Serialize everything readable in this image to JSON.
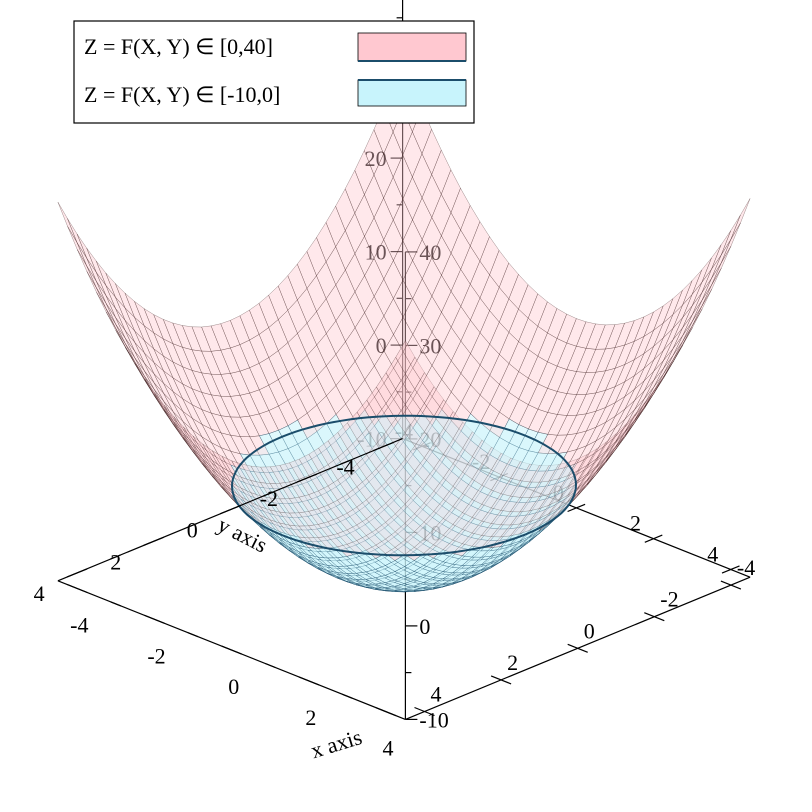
{
  "chart_data": {
    "type": "surface3d",
    "title": "",
    "xlabel": "x axis",
    "ylabel": "y axis",
    "zlabel": "",
    "xlim": [
      -4.5,
      4.5
    ],
    "ylim": [
      -4.5,
      4.5
    ],
    "zlim": [
      -10,
      40
    ],
    "x_ticks": [
      -4,
      -2,
      0,
      2,
      4
    ],
    "y_ticks": [
      -4,
      -2,
      0,
      2,
      4
    ],
    "z_ticks": [
      -10,
      0,
      10,
      20,
      30,
      40
    ],
    "x_tick_labels": [
      "-4",
      "-2",
      "0",
      "2",
      "4"
    ],
    "y_tick_labels": [
      "-4",
      "-2",
      "0",
      "2",
      "4"
    ],
    "z_tick_labels": [
      "-10",
      "0",
      "10",
      "20",
      "30",
      "40"
    ],
    "function": "Z = X^2 + Y^2 - 10",
    "grid_lines": 37,
    "series": [
      {
        "name": "Z = F(X, Y) ∈ [0,40]",
        "z_range": [
          0,
          40
        ],
        "color": "#ffc8d0",
        "line_color": "#3a1c1c"
      },
      {
        "name": "Z = F(X, Y) ∈ [-10,0]",
        "z_range": [
          -10,
          0
        ],
        "color": "#c8f4fc",
        "line_color": "#1b4d6b"
      }
    ],
    "legend_position": "top-left"
  }
}
